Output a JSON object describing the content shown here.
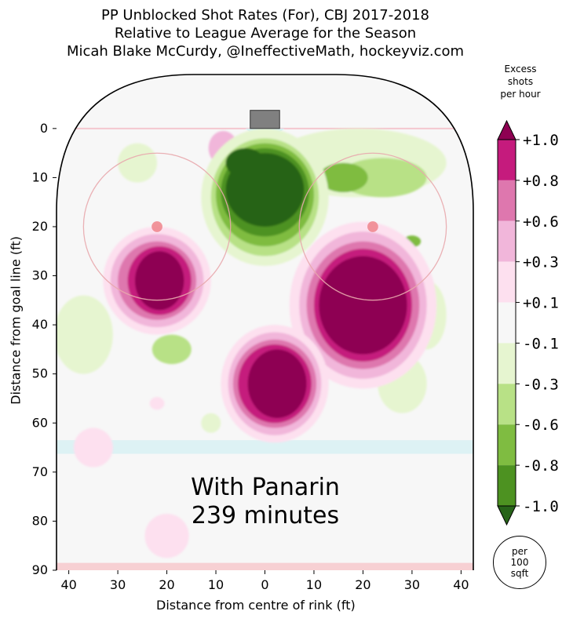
{
  "chart_data": {
    "type": "heatmap",
    "title_lines": [
      "PP Unblocked Shot Rates (For), CBJ 2017-2018",
      "Relative to League Average for the Season",
      "Micah Blake McCurdy, @IneffectiveMath, hockeyviz.com"
    ],
    "xlabel": "Distance from centre of rink (ft)",
    "ylabel": "Distance from goal line (ft)",
    "x_ticks": [
      40,
      30,
      20,
      10,
      0,
      10,
      20,
      30,
      40
    ],
    "y_ticks": [
      0,
      10,
      20,
      30,
      40,
      50,
      60,
      70,
      80,
      90
    ],
    "xlim": [
      -42.5,
      42.5
    ],
    "ylim": [
      -11,
      90
    ],
    "annotation_lines": [
      "With Panarin",
      "239 minutes"
    ],
    "colorbar": {
      "title_lines": [
        "Excess",
        "shots",
        "per hour"
      ],
      "labels": [
        "+1.0",
        "+0.8",
        "+0.6",
        "+0.3",
        "+0.1",
        "-0.1",
        "-0.3",
        "-0.6",
        "-0.8",
        "-1.0"
      ],
      "bands": [
        "#8e0152",
        "#c51b7d",
        "#de77ae",
        "#f1b6da",
        "#fde0ef",
        "#f7f7f7",
        "#e6f5d0",
        "#b8e186",
        "#7fbc41",
        "#4d9221",
        "#276419"
      ],
      "footnote_lines": [
        "per",
        "100",
        "sqft"
      ]
    },
    "contour_blobs": [
      {
        "x": -8.5,
        "y": 4,
        "rx": 3,
        "ry": 3.5,
        "level": 0.3
      },
      {
        "x": -26,
        "y": 7,
        "rx": 4,
        "ry": 4,
        "level": -0.1
      },
      {
        "x": 19,
        "y": 7,
        "rx": 18,
        "ry": 7,
        "level": -0.1
      },
      {
        "x": 24,
        "y": 10,
        "rx": 9,
        "ry": 4,
        "level": -0.3
      },
      {
        "x": 16,
        "y": 10,
        "rx": 5,
        "ry": 3,
        "level": -0.6
      },
      {
        "x": 0,
        "y": 14,
        "rx": 13,
        "ry": 14,
        "level": -0.1
      },
      {
        "x": 0,
        "y": 14,
        "rx": 11,
        "ry": 12,
        "level": -0.3
      },
      {
        "x": 0,
        "y": 13.5,
        "rx": 10,
        "ry": 10.5,
        "level": -0.6
      },
      {
        "x": 0,
        "y": 13,
        "rx": 9,
        "ry": 9,
        "level": -0.8
      },
      {
        "x": 0,
        "y": 12.5,
        "rx": 8,
        "ry": 7.5,
        "level": -1.0
      },
      {
        "x": -4,
        "y": 7,
        "rx": 4,
        "ry": 3,
        "level": -1.0
      },
      {
        "x": -37,
        "y": 42,
        "rx": 6,
        "ry": 8,
        "level": -0.1
      },
      {
        "x": -19,
        "y": 45,
        "rx": 4,
        "ry": 3,
        "level": -0.3
      },
      {
        "x": 33,
        "y": 38,
        "rx": 4,
        "ry": 7,
        "level": -0.1
      },
      {
        "x": 33,
        "y": 38,
        "rx": 1,
        "ry": 1.5,
        "level": -0.6
      },
      {
        "x": 30,
        "y": 23,
        "rx": 1.8,
        "ry": 1.2,
        "level": -0.6
      },
      {
        "x": 28,
        "y": 52,
        "rx": 5,
        "ry": 6,
        "level": -0.1
      },
      {
        "x": -11,
        "y": 60,
        "rx": 2,
        "ry": 2,
        "level": -0.1
      },
      {
        "x": -22,
        "y": 31,
        "rx": 11,
        "ry": 11,
        "level": 0.1
      },
      {
        "x": -22,
        "y": 31,
        "rx": 9.5,
        "ry": 9.5,
        "level": 0.3
      },
      {
        "x": -22,
        "y": 31,
        "rx": 8,
        "ry": 8,
        "level": 0.6
      },
      {
        "x": -21.5,
        "y": 31,
        "rx": 6.5,
        "ry": 7,
        "level": 0.8
      },
      {
        "x": -21.5,
        "y": 31,
        "rx": 5,
        "ry": 6,
        "level": 1.0
      },
      {
        "x": 20,
        "y": 36,
        "rx": 15,
        "ry": 17,
        "level": 0.1
      },
      {
        "x": 20,
        "y": 36,
        "rx": 13,
        "ry": 15,
        "level": 0.3
      },
      {
        "x": 20,
        "y": 36,
        "rx": 11.5,
        "ry": 13,
        "level": 0.6
      },
      {
        "x": 20,
        "y": 36,
        "rx": 10,
        "ry": 11.5,
        "level": 0.8
      },
      {
        "x": 20,
        "y": 36,
        "rx": 9,
        "ry": 10,
        "level": 1.0
      },
      {
        "x": 2,
        "y": 52,
        "rx": 11,
        "ry": 12,
        "level": 0.1
      },
      {
        "x": 2,
        "y": 52,
        "rx": 9.5,
        "ry": 10.5,
        "level": 0.3
      },
      {
        "x": 2,
        "y": 52,
        "rx": 8.5,
        "ry": 9,
        "level": 0.6
      },
      {
        "x": 2,
        "y": 52,
        "rx": 7.5,
        "ry": 8,
        "level": 0.8
      },
      {
        "x": 2.5,
        "y": 52,
        "rx": 6,
        "ry": 7,
        "level": 1.0
      },
      {
        "x": -22,
        "y": 56,
        "rx": 1.5,
        "ry": 1.3,
        "level": 0.1
      },
      {
        "x": -35,
        "y": 65,
        "rx": 4,
        "ry": 4,
        "level": 0.1
      },
      {
        "x": -20,
        "y": 83,
        "rx": 4.5,
        "ry": 4.5,
        "level": 0.1
      }
    ]
  }
}
